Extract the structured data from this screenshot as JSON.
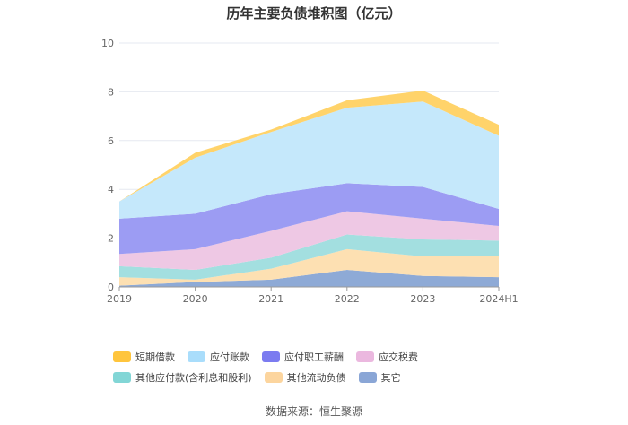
{
  "chart_data": {
    "type": "area",
    "stacked": true,
    "title": "历年主要负债堆积图（亿元）",
    "categories": [
      "2019",
      "2020",
      "2021",
      "2022",
      "2023",
      "2024H1"
    ],
    "ylim": [
      0,
      10
    ],
    "yticks": [
      0,
      2,
      4,
      6,
      8,
      10
    ],
    "grid": true,
    "legend_position": "bottom",
    "series": [
      {
        "name": "其它",
        "color": "#8eaad6",
        "values": [
          0.05,
          0.2,
          0.3,
          0.7,
          0.45,
          0.4
        ]
      },
      {
        "name": "其他流动负债",
        "color": "#fde0b2",
        "values": [
          0.35,
          0.1,
          0.45,
          0.85,
          0.8,
          0.85
        ]
      },
      {
        "name": "其他应付款(含利息和股利)",
        "color": "#a3dfe0",
        "values": [
          0.45,
          0.4,
          0.45,
          0.6,
          0.7,
          0.65
        ]
      },
      {
        "name": "应交税费",
        "color": "#eec8e4",
        "values": [
          0.5,
          0.85,
          1.1,
          0.95,
          0.85,
          0.6
        ]
      },
      {
        "name": "应付职工薪酬",
        "color": "#9c9cf3",
        "values": [
          1.45,
          1.45,
          1.5,
          1.15,
          1.3,
          0.7
        ]
      },
      {
        "name": "应付账款",
        "color": "#c5e8fb",
        "values": [
          0.7,
          2.3,
          2.55,
          3.1,
          3.5,
          3.0
        ]
      },
      {
        "name": "短期借款",
        "color": "#ffd36a",
        "values": [
          0.0,
          0.2,
          0.1,
          0.3,
          0.45,
          0.45
        ]
      }
    ]
  },
  "legend": [
    {
      "label": "短期借款",
      "color": "#ffc53d"
    },
    {
      "label": "应付账款",
      "color": "#a9ddfb"
    },
    {
      "label": "应付职工薪酬",
      "color": "#7b7bf0"
    },
    {
      "label": "应交税费",
      "color": "#ebb8df"
    },
    {
      "label": "其他应付款(含利息和股利)",
      "color": "#82d6d6"
    },
    {
      "label": "其他流动负债",
      "color": "#fcd59e"
    },
    {
      "label": "其它",
      "color": "#8aa6d6"
    }
  ],
  "source": "数据来源：恒生聚源"
}
